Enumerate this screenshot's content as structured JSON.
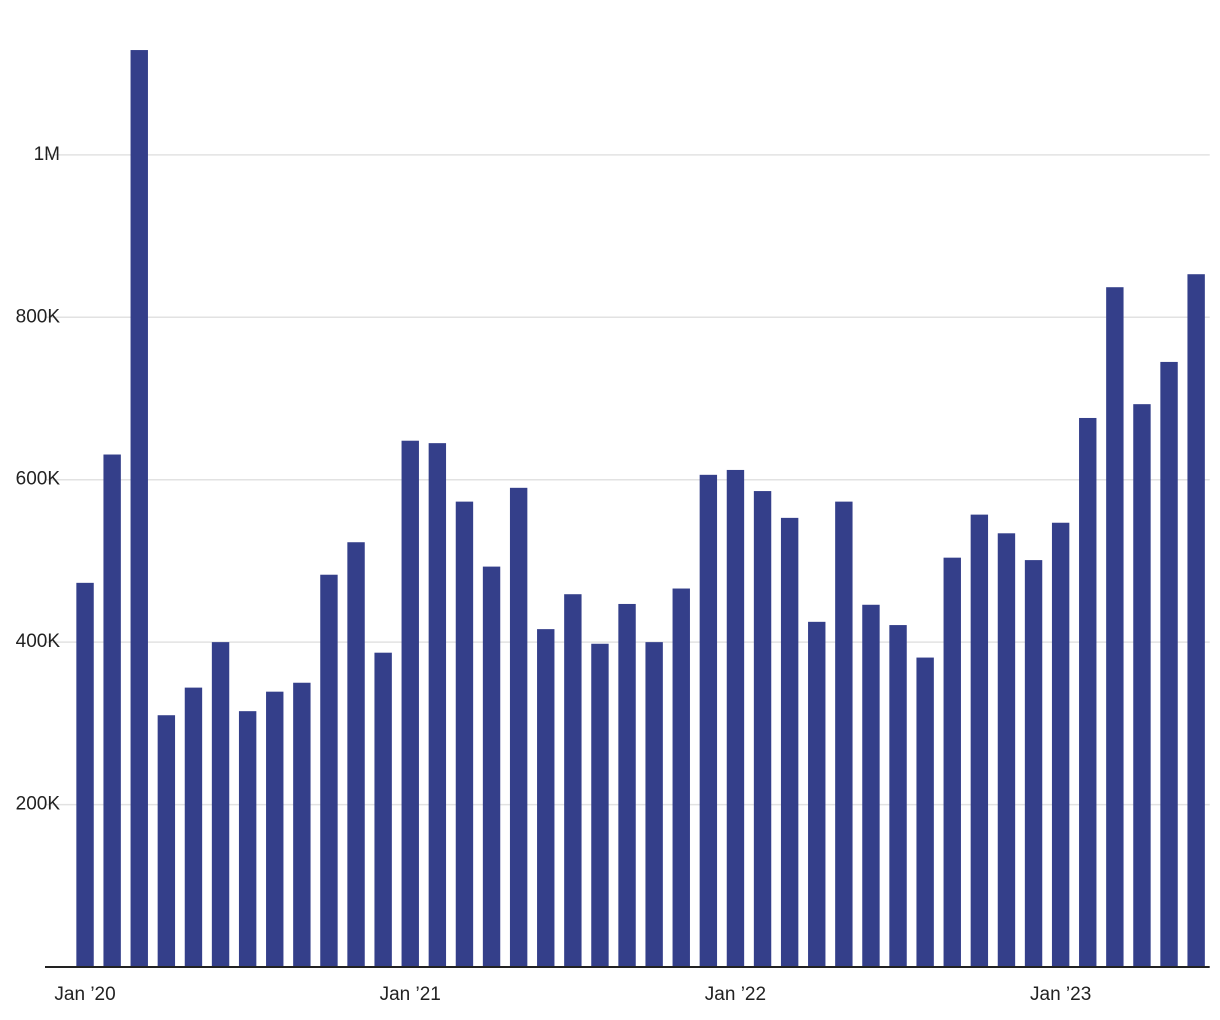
{
  "chart_data": {
    "type": "bar",
    "categories": [
      "Jan ’20",
      null,
      null,
      null,
      null,
      null,
      null,
      null,
      null,
      null,
      null,
      null,
      "Jan ’21",
      null,
      null,
      null,
      null,
      null,
      null,
      null,
      null,
      null,
      null,
      null,
      "Jan ’22",
      null,
      null,
      null,
      null,
      null,
      null,
      null,
      null,
      null,
      null,
      null,
      "Jan ’23",
      null,
      null,
      null,
      null,
      null
    ],
    "values": [
      473000,
      631000,
      1129000,
      310000,
      344000,
      400000,
      315000,
      339000,
      350000,
      483000,
      523000,
      387000,
      648000,
      645000,
      573000,
      493000,
      590000,
      416000,
      459000,
      398000,
      447000,
      400000,
      466000,
      606000,
      612000,
      586000,
      553000,
      425000,
      573000,
      446000,
      421000,
      381000,
      504000,
      557000,
      534000,
      501000,
      547000,
      676000,
      837000,
      693000,
      745000,
      853000
    ],
    "color": "#343f8a",
    "ylim": [
      0,
      1150000
    ],
    "yticks": [
      {
        "value": 200000,
        "label": "200K"
      },
      {
        "value": 400000,
        "label": "400K"
      },
      {
        "value": 600000,
        "label": "600K"
      },
      {
        "value": 800000,
        "label": "800K"
      },
      {
        "value": 1000000,
        "label": "1M"
      }
    ],
    "grid": true
  }
}
